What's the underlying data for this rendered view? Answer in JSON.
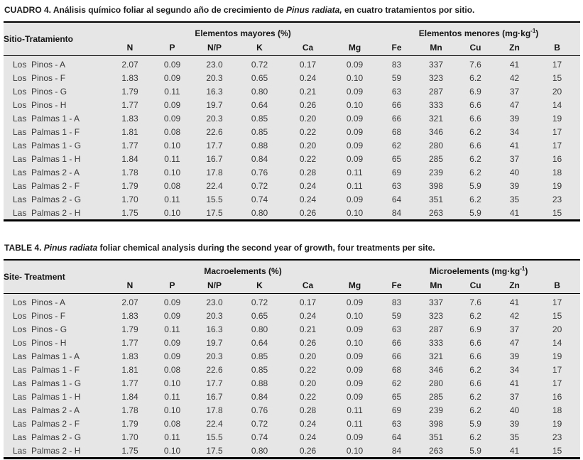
{
  "colors": {
    "page_background": "#ffffff",
    "table_background": "#e6e6e6",
    "rule": "#000000",
    "heading_text": "#151515",
    "data_text": "#383838"
  },
  "tables": [
    {
      "language": "es",
      "title_parts": [
        {
          "t": "CUADRO 4. Análisis químico foliar al segundo año de crecimiento de ",
          "i": false
        },
        {
          "t": "Pinus radiata,",
          "i": true
        },
        {
          "t": " en cuatro tratamientos por sitio.",
          "i": false
        }
      ],
      "row_header": "Sitio-Tratamiento",
      "macro_group": "Elementos mayores (%)",
      "micro_group": {
        "prefix": "Elementos menores (mg·kg",
        "sup": "-1",
        "suffix": ")"
      },
      "columns": [
        "N",
        "P",
        "N/P",
        "K",
        "Ca",
        "Mg",
        "Fe",
        "Mn",
        "Cu",
        "Zn",
        "B"
      ],
      "rows": [
        {
          "label": "Los  Pinos - A",
          "values": [
            "2.07",
            "0.09",
            "23.0",
            "0.72",
            "0.17",
            "0.09",
            "83",
            "337",
            "7.6",
            "41",
            "17"
          ]
        },
        {
          "label": "Los  Pinos - F",
          "values": [
            "1.83",
            "0.09",
            "20.3",
            "0.65",
            "0.24",
            "0.10",
            "59",
            "323",
            "6.2",
            "42",
            "15"
          ]
        },
        {
          "label": "Los  Pinos - G",
          "values": [
            "1.79",
            "0.11",
            "16.3",
            "0.80",
            "0.21",
            "0.09",
            "63",
            "287",
            "6.9",
            "37",
            "20"
          ]
        },
        {
          "label": "Los  Pinos - H",
          "values": [
            "1.77",
            "0.09",
            "19.7",
            "0.64",
            "0.26",
            "0.10",
            "66",
            "333",
            "6.6",
            "47",
            "14"
          ]
        },
        {
          "label": "Las  Palmas 1 - A",
          "values": [
            "1.83",
            "0.09",
            "20.3",
            "0.85",
            "0.20",
            "0.09",
            "66",
            "321",
            "6.6",
            "39",
            "19"
          ]
        },
        {
          "label": "Las  Palmas 1 - F",
          "values": [
            "1.81",
            "0.08",
            "22.6",
            "0.85",
            "0.22",
            "0.09",
            "68",
            "346",
            "6.2",
            "34",
            "17"
          ]
        },
        {
          "label": "Las  Palmas 1 - G",
          "values": [
            "1.77",
            "0.10",
            "17.7",
            "0.88",
            "0.20",
            "0.09",
            "62",
            "280",
            "6.6",
            "41",
            "17"
          ]
        },
        {
          "label": "Las  Palmas 1 - H",
          "values": [
            "1.84",
            "0.11",
            "16.7",
            "0.84",
            "0.22",
            "0.09",
            "65",
            "285",
            "6.2",
            "37",
            "16"
          ]
        },
        {
          "label": "Las  Palmas 2 - A",
          "values": [
            "1.78",
            "0.10",
            "17.8",
            "0.76",
            "0.28",
            "0.11",
            "69",
            "239",
            "6.2",
            "40",
            "18"
          ]
        },
        {
          "label": "Las  Palmas 2 - F",
          "values": [
            "1.79",
            "0.08",
            "22.4",
            "0.72",
            "0.24",
            "0.11",
            "63",
            "398",
            "5.9",
            "39",
            "19"
          ]
        },
        {
          "label": "Las  Palmas 2 - G",
          "values": [
            "1.70",
            "0.11",
            "15.5",
            "0.74",
            "0.24",
            "0.09",
            "64",
            "351",
            "6.2",
            "35",
            "23"
          ]
        },
        {
          "label": "Las  Palmas 2 - H",
          "values": [
            "1.75",
            "0.10",
            "17.5",
            "0.80",
            "0.26",
            "0.10",
            "84",
            "263",
            "5.9",
            "41",
            "15"
          ]
        }
      ]
    },
    {
      "language": "en",
      "title_parts": [
        {
          "t": "TABLE 4. ",
          "i": false
        },
        {
          "t": "Pinus radiata",
          "i": true
        },
        {
          "t": " foliar chemical analysis during the second year of growth, four treatments per site.",
          "i": false
        }
      ],
      "row_header": "Site- Treatment",
      "macro_group": "Macroelements (%)",
      "micro_group": {
        "prefix": "Microelements (mg·kg",
        "sup": "-1",
        "suffix": ")"
      },
      "columns": [
        "N",
        "P",
        "N/P",
        "K",
        "Ca",
        "Mg",
        "Fe",
        "Mn",
        "Cu",
        "Zn",
        "B"
      ],
      "rows": [
        {
          "label": "Los  Pinos - A",
          "values": [
            "2.07",
            "0.09",
            "23.0",
            "0.72",
            "0.17",
            "0.09",
            "83",
            "337",
            "7.6",
            "41",
            "17"
          ]
        },
        {
          "label": "Los  Pinos - F",
          "values": [
            "1.83",
            "0.09",
            "20.3",
            "0.65",
            "0.24",
            "0.10",
            "59",
            "323",
            "6.2",
            "42",
            "15"
          ]
        },
        {
          "label": "Los  Pinos - G",
          "values": [
            "1.79",
            "0.11",
            "16.3",
            "0.80",
            "0.21",
            "0.09",
            "63",
            "287",
            "6.9",
            "37",
            "20"
          ]
        },
        {
          "label": "Los  Pinos - H",
          "values": [
            "1.77",
            "0.09",
            "19.7",
            "0.64",
            "0.26",
            "0.10",
            "66",
            "333",
            "6.6",
            "47",
            "14"
          ]
        },
        {
          "label": "Las  Palmas 1 - A",
          "values": [
            "1.83",
            "0.09",
            "20.3",
            "0.85",
            "0.20",
            "0.09",
            "66",
            "321",
            "6.6",
            "39",
            "19"
          ]
        },
        {
          "label": "Las  Palmas 1 - F",
          "values": [
            "1.81",
            "0.08",
            "22.6",
            "0.85",
            "0.22",
            "0.09",
            "68",
            "346",
            "6.2",
            "34",
            "17"
          ]
        },
        {
          "label": "Las  Palmas 1 - G",
          "values": [
            "1.77",
            "0.10",
            "17.7",
            "0.88",
            "0.20",
            "0.09",
            "62",
            "280",
            "6.6",
            "41",
            "17"
          ]
        },
        {
          "label": "Las  Palmas 1 - H",
          "values": [
            "1.84",
            "0.11",
            "16.7",
            "0.84",
            "0.22",
            "0.09",
            "65",
            "285",
            "6.2",
            "37",
            "16"
          ]
        },
        {
          "label": "Las  Palmas 2 - A",
          "values": [
            "1.78",
            "0.10",
            "17.8",
            "0.76",
            "0.28",
            "0.11",
            "69",
            "239",
            "6.2",
            "40",
            "18"
          ]
        },
        {
          "label": "Las  Palmas 2 - F",
          "values": [
            "1.79",
            "0.08",
            "22.4",
            "0.72",
            "0.24",
            "0.11",
            "63",
            "398",
            "5.9",
            "39",
            "19"
          ]
        },
        {
          "label": "Las  Palmas 2 - G",
          "values": [
            "1.70",
            "0.11",
            "15.5",
            "0.74",
            "0.24",
            "0.09",
            "64",
            "351",
            "6.2",
            "35",
            "23"
          ]
        },
        {
          "label": "Las  Palmas 2 - H",
          "values": [
            "1.75",
            "0.10",
            "17.5",
            "0.80",
            "0.26",
            "0.10",
            "84",
            "263",
            "5.9",
            "41",
            "15"
          ]
        }
      ]
    }
  ]
}
